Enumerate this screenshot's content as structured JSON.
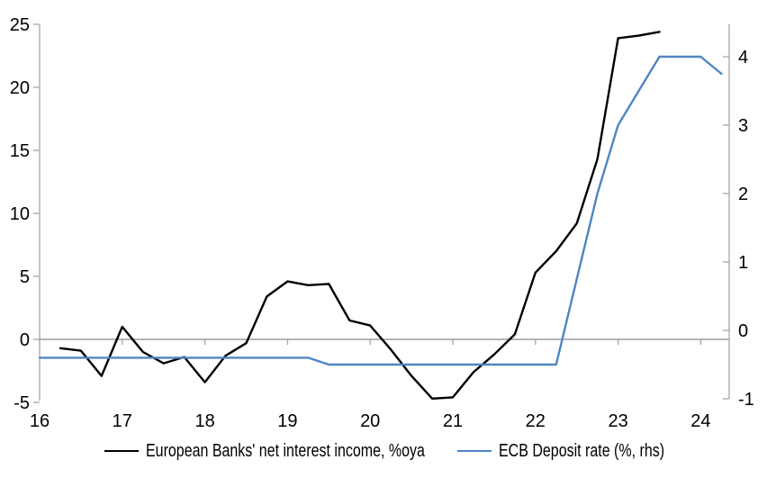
{
  "chart_data": {
    "type": "line",
    "title": "",
    "grid": false,
    "zero_line": true,
    "legend_position": "bottom",
    "x_axis": {
      "ticks": [
        16,
        17,
        18,
        19,
        20,
        21,
        22,
        23,
        24
      ],
      "range": [
        16,
        24.35
      ]
    },
    "left_axis": {
      "ticks": [
        25,
        20,
        15,
        10,
        5,
        0,
        -5
      ],
      "range": [
        -5,
        25
      ]
    },
    "right_axis": {
      "ticks": [
        4,
        3,
        2,
        1,
        0,
        -1
      ],
      "range": [
        -1,
        4.5
      ]
    },
    "colors": {
      "nii": "#000000",
      "ecb": "#4e86c2",
      "axis": "#a6a6a6",
      "zero_line": "#9b9b9b"
    },
    "series": [
      {
        "name": "European Banks' net interest income, %oya",
        "axis": "left",
        "color_key": "nii",
        "x": [
          16.25,
          16.5,
          16.75,
          17.0,
          17.25,
          17.5,
          17.75,
          18.0,
          18.25,
          18.5,
          18.75,
          19.0,
          19.25,
          19.5,
          19.75,
          20.0,
          20.25,
          20.5,
          20.75,
          21.0,
          21.25,
          21.5,
          21.75,
          22.0,
          22.25,
          22.5,
          22.75,
          23.0,
          23.25,
          23.5
        ],
        "values": [
          -0.7,
          -0.9,
          -2.9,
          1.0,
          -1.0,
          -1.9,
          -1.4,
          -3.4,
          -1.3,
          -0.3,
          3.4,
          4.6,
          4.3,
          4.4,
          1.5,
          1.1,
          -0.8,
          -2.9,
          -4.7,
          -4.6,
          -2.6,
          -1.2,
          0.4,
          5.3,
          7.0,
          9.2,
          14.3,
          23.9,
          24.1,
          24.4
        ]
      },
      {
        "name": "ECB Deposit rate (%, rhs)",
        "axis": "right",
        "color_key": "ecb",
        "x": [
          16.0,
          16.25,
          16.5,
          16.75,
          17.0,
          17.25,
          17.5,
          17.75,
          18.0,
          18.25,
          18.5,
          18.75,
          19.0,
          19.25,
          19.5,
          19.75,
          20.0,
          20.25,
          20.5,
          20.75,
          21.0,
          21.25,
          21.5,
          21.75,
          22.0,
          22.25,
          22.5,
          22.75,
          23.0,
          23.25,
          23.5,
          23.75,
          24.0,
          24.25
        ],
        "values": [
          -0.4,
          -0.4,
          -0.4,
          -0.4,
          -0.4,
          -0.4,
          -0.4,
          -0.4,
          -0.4,
          -0.4,
          -0.4,
          -0.4,
          -0.4,
          -0.4,
          -0.5,
          -0.5,
          -0.5,
          -0.5,
          -0.5,
          -0.5,
          -0.5,
          -0.5,
          -0.5,
          -0.5,
          -0.5,
          -0.5,
          0.75,
          2.0,
          3.0,
          3.5,
          4.0,
          4.0,
          4.0,
          3.75
        ]
      }
    ]
  }
}
